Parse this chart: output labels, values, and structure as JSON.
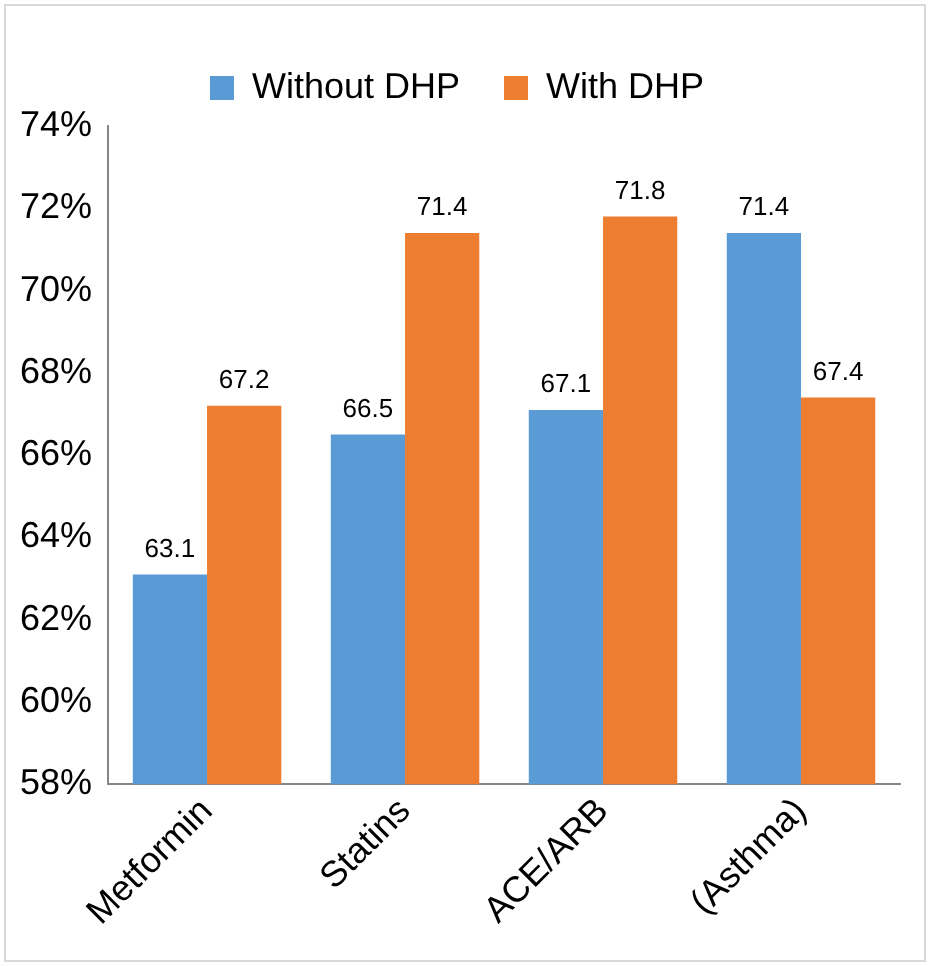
{
  "chart_data": {
    "type": "bar",
    "categories": [
      "Metformin",
      "Statins",
      "ACE/ARB",
      "(Asthma)"
    ],
    "series": [
      {
        "name": "Without DHP",
        "color": "#5b9bd5",
        "values": [
          63.1,
          66.5,
          67.1,
          71.4
        ]
      },
      {
        "name": "With DHP",
        "color": "#ed7d31",
        "values": [
          67.2,
          71.4,
          71.8,
          67.4
        ]
      }
    ],
    "ylim": [
      58,
      74
    ],
    "yticks": [
      {
        "value": 58,
        "label": "58%"
      },
      {
        "value": 60,
        "label": "60%"
      },
      {
        "value": 62,
        "label": "62%"
      },
      {
        "value": 64,
        "label": "64%"
      },
      {
        "value": 66,
        "label": "66%"
      },
      {
        "value": 68,
        "label": "68%"
      },
      {
        "value": 70,
        "label": "70%"
      },
      {
        "value": 72,
        "label": "72%"
      },
      {
        "value": 74,
        "label": "74%"
      }
    ],
    "data_labels": true,
    "legend": "top",
    "grid": false
  }
}
